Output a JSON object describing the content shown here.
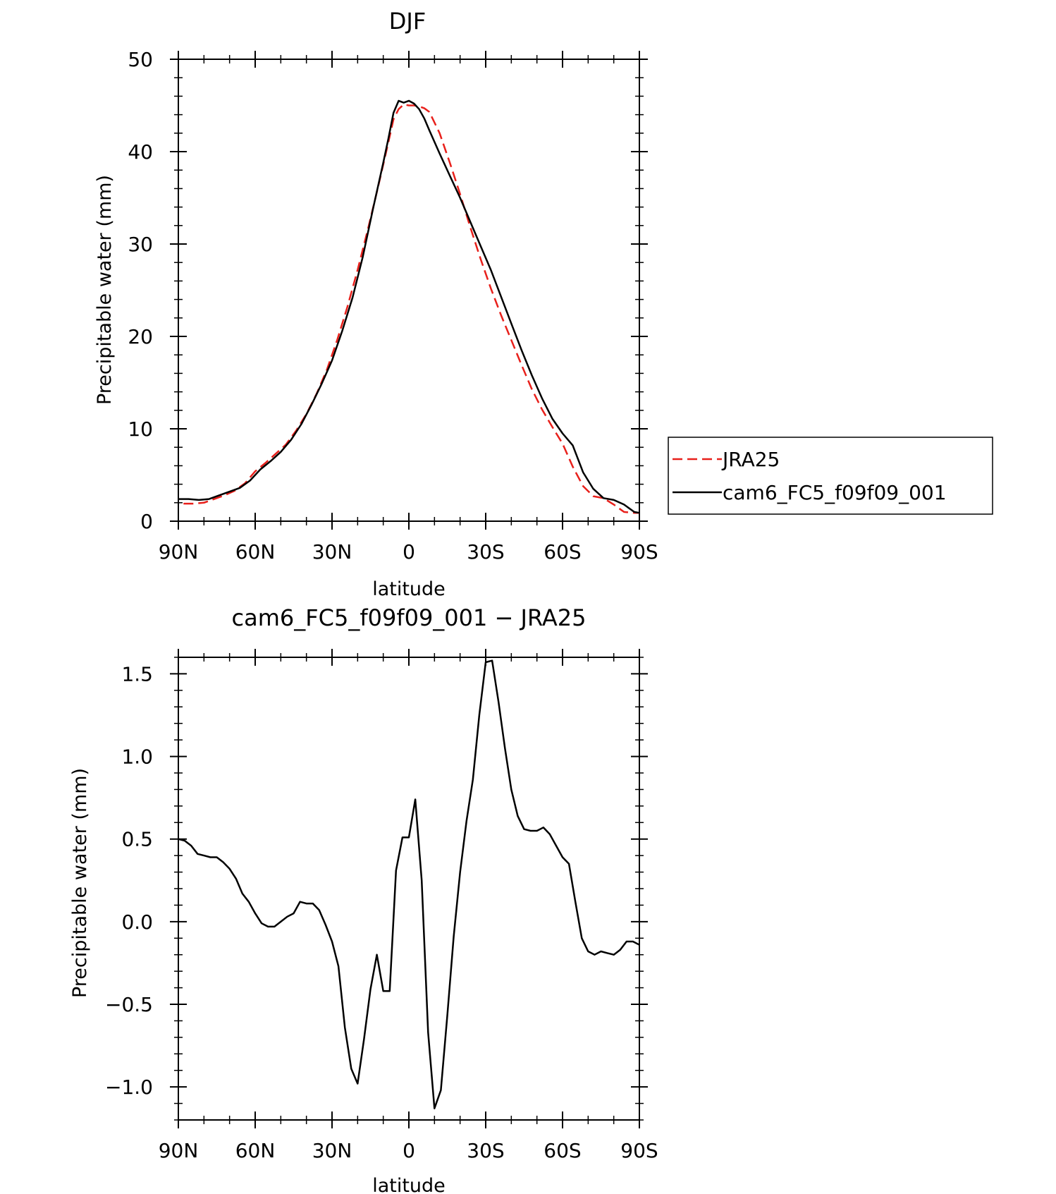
{
  "chart_data": [
    {
      "type": "line",
      "title": "DJF",
      "xlabel": "latitude",
      "ylabel": "Precipitable water (mm)",
      "x_tick_labels": [
        "90N",
        "60N",
        "30N",
        "0",
        "30S",
        "60S",
        "90S"
      ],
      "x_ticks": [
        -90,
        -60,
        -30,
        0,
        30,
        60,
        90
      ],
      "xlim": [
        -90,
        90
      ],
      "y_tick_labels": [
        "0",
        "10",
        "20",
        "30",
        "40",
        "50"
      ],
      "y_ticks": [
        0,
        10,
        20,
        30,
        40,
        50
      ],
      "ylim": [
        0,
        50
      ],
      "grid": false,
      "legend_position": "right",
      "series": [
        {
          "name": "JRA25",
          "color": "#e8201b",
          "dash": true,
          "x": [
            -88,
            -84,
            -80,
            -76,
            -72,
            -68,
            -64,
            -60,
            -56,
            -52,
            -48,
            -44,
            -40,
            -36,
            -32,
            -28,
            -24,
            -20,
            -16,
            -12,
            -8,
            -6,
            -4,
            -2,
            0,
            2,
            4,
            6,
            8,
            12,
            16,
            20,
            24,
            28,
            32,
            36,
            40,
            44,
            48,
            52,
            56,
            60,
            64,
            68,
            72,
            76,
            80,
            84,
            88,
            90
          ],
          "y": [
            1.9,
            1.9,
            2.0,
            2.4,
            2.8,
            3.3,
            4.1,
            5.4,
            6.3,
            7.3,
            8.3,
            9.8,
            11.6,
            13.8,
            16.4,
            19.6,
            23.2,
            27.2,
            31.6,
            36.2,
            41.0,
            43.5,
            44.6,
            45.1,
            45.0,
            45.0,
            44.9,
            44.7,
            44.3,
            42.0,
            38.8,
            35.4,
            31.8,
            28.4,
            25.2,
            22.3,
            19.6,
            16.9,
            14.3,
            12.1,
            10.2,
            8.4,
            5.9,
            3.8,
            2.7,
            2.5,
            1.8,
            1.0,
            0.9,
            0.9
          ]
        },
        {
          "name": "cam6_FC5_f09f09_001",
          "color": "#000000",
          "dash": false,
          "x": [
            -90,
            -86,
            -82,
            -78,
            -74,
            -70,
            -66,
            -62,
            -58,
            -54,
            -50,
            -46,
            -42,
            -38,
            -34,
            -30,
            -26,
            -22,
            -18,
            -14,
            -10,
            -8,
            -6,
            -4,
            -2,
            0,
            2,
            4,
            6,
            8,
            12,
            16,
            20,
            24,
            28,
            32,
            36,
            40,
            44,
            48,
            52,
            56,
            60,
            64,
            68,
            72,
            76,
            80,
            84,
            88,
            90
          ],
          "y": [
            2.4,
            2.4,
            2.3,
            2.4,
            2.8,
            3.2,
            3.6,
            4.4,
            5.6,
            6.5,
            7.5,
            8.8,
            10.5,
            12.6,
            14.9,
            17.4,
            20.6,
            24.2,
            28.6,
            33.8,
            38.8,
            41.4,
            44.2,
            45.5,
            45.3,
            45.5,
            45.2,
            44.6,
            43.6,
            42.3,
            39.8,
            37.4,
            35.0,
            32.4,
            29.8,
            27.2,
            24.3,
            21.4,
            18.5,
            15.8,
            13.3,
            11.1,
            9.5,
            8.2,
            5.3,
            3.5,
            2.5,
            2.3,
            1.8,
            1.0,
            0.9
          ]
        }
      ]
    },
    {
      "type": "line",
      "title": "cam6_FC5_f09f09_001 − JRA25",
      "xlabel": "latitude",
      "ylabel": "Precipitable water (mm)",
      "x_tick_labels": [
        "90N",
        "60N",
        "30N",
        "0",
        "30S",
        "60S",
        "90S"
      ],
      "x_ticks": [
        -90,
        -60,
        -30,
        0,
        30,
        60,
        90
      ],
      "xlim": [
        -90,
        90
      ],
      "y_tick_labels": [
        "−1.0",
        "−0.5",
        "0.0",
        "0.5",
        "1.0",
        "1.5"
      ],
      "y_ticks": [
        -1.0,
        -0.5,
        0.0,
        0.5,
        1.0,
        1.5
      ],
      "ylim": [
        -1.2,
        1.6
      ],
      "grid": false,
      "series": [
        {
          "color": "#000000",
          "dash": false,
          "x": [
            -90,
            -87.5,
            -85,
            -82.5,
            -80,
            -77.5,
            -75,
            -72.5,
            -70,
            -67.5,
            -65,
            -62.5,
            -60,
            -57.5,
            -55,
            -52.5,
            -50,
            -47.5,
            -45,
            -42.5,
            -40,
            -37.5,
            -35,
            -32.5,
            -30,
            -27.5,
            -25,
            -22.5,
            -20,
            -17.5,
            -15,
            -12.5,
            -10,
            -7.5,
            -5,
            -2.5,
            0,
            2.5,
            5,
            7.5,
            10,
            12.5,
            15,
            17.5,
            20,
            22.5,
            25,
            27.5,
            30,
            32.5,
            35,
            37.5,
            40,
            42.5,
            45,
            47.5,
            50,
            52.5,
            55,
            57.5,
            60,
            62.5,
            65,
            67.5,
            70,
            72.5,
            75,
            77.5,
            80,
            82.5,
            85,
            87.5,
            90
          ],
          "y": [
            0.5,
            0.49,
            0.46,
            0.41,
            0.4,
            0.39,
            0.39,
            0.36,
            0.32,
            0.26,
            0.17,
            0.12,
            0.05,
            -0.01,
            -0.03,
            -0.03,
            0.0,
            0.03,
            0.05,
            0.12,
            0.11,
            0.11,
            0.07,
            -0.02,
            -0.12,
            -0.27,
            -0.64,
            -0.89,
            -0.98,
            -0.71,
            -0.41,
            -0.2,
            -0.42,
            -0.42,
            0.31,
            0.51,
            0.51,
            0.74,
            0.25,
            -0.67,
            -1.13,
            -1.02,
            -0.57,
            -0.09,
            0.3,
            0.61,
            0.86,
            1.25,
            1.57,
            1.58,
            1.33,
            1.05,
            0.8,
            0.64,
            0.56,
            0.55,
            0.55,
            0.57,
            0.53,
            0.46,
            0.39,
            0.35,
            0.12,
            -0.1,
            -0.18,
            -0.2,
            -0.18,
            -0.19,
            -0.2,
            -0.17,
            -0.12,
            -0.12,
            -0.14
          ]
        }
      ]
    }
  ]
}
